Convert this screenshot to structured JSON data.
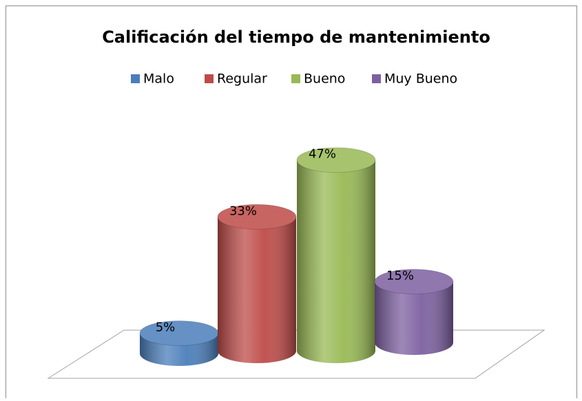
{
  "chart_data": {
    "type": "bar3d",
    "title": "Calificación del tiempo de mantenimiento",
    "categories": [
      "Malo",
      "Regular",
      "Bueno",
      "Muy Bueno"
    ],
    "values": [
      5,
      33,
      47,
      15
    ],
    "value_labels": [
      "5%",
      "33%",
      "47%",
      "15%"
    ],
    "colors": [
      "#4a7ebb",
      "#be4b48",
      "#98b954",
      "#7d60a0"
    ],
    "legend": "top"
  }
}
